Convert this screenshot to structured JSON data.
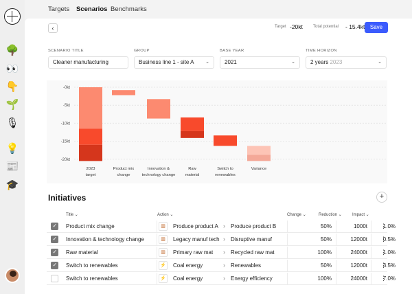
{
  "nav": {
    "tabs": [
      "Targets",
      "Scenarios",
      "Benchmarks"
    ],
    "active_tab": "Scenarios"
  },
  "header": {
    "target_label": "Target",
    "target_value": "-20kt",
    "potential_label": "Total potential",
    "potential_value": "- 15.4kt",
    "save_label": "Save",
    "back_icon": "chevron-left-icon"
  },
  "form": {
    "title_label": "SCENARIO TITLE",
    "title_value": "Cleaner manufacturing",
    "group_label": "GROUP",
    "group_value": "Business line 1 - site A",
    "base_year_label": "BASE YEAR",
    "base_year_value": "2021",
    "horizon_label": "TIME HORIZON",
    "horizon_value": "2 years",
    "horizon_hint": "2023"
  },
  "chart_data": {
    "type": "bar",
    "subtype": "waterfall",
    "y_tick_labels": [
      "-0kt",
      "-5kt",
      "-10kt",
      "-15kt",
      "-20kt"
    ],
    "ylim": [
      0,
      -21
    ],
    "categories": [
      "2023 target",
      "Product mix change",
      "Innovation & technology change",
      "Raw material",
      "Switch to renewables",
      "Variance"
    ],
    "x_labels": [
      [
        "2023",
        "target"
      ],
      [
        "Product mix",
        "change"
      ],
      [
        "Innovation &",
        "technology change"
      ],
      [
        "Raw",
        "material"
      ],
      [
        "Switch to",
        "renewables"
      ],
      [
        "Variance"
      ]
    ],
    "bars": [
      {
        "start": 0,
        "end": -20.5,
        "segments": [
          {
            "from": 0,
            "to": -11.5,
            "color": "#fc8a70"
          },
          {
            "from": -11.5,
            "to": -16,
            "color": "#f84a2c"
          },
          {
            "from": -16,
            "to": -20.5,
            "color": "#d5361c"
          }
        ]
      },
      {
        "start": -0.8,
        "end": -2.2,
        "segments": [
          {
            "from": -0.8,
            "to": -2.2,
            "color": "#fc8a70"
          }
        ]
      },
      {
        "start": -3.3,
        "end": -8.7,
        "segments": [
          {
            "from": -3.3,
            "to": -8.7,
            "color": "#fc8a70"
          }
        ]
      },
      {
        "start": -8.4,
        "end": -14.1,
        "segments": [
          {
            "from": -8.4,
            "to": -12.2,
            "color": "#f84a2c"
          },
          {
            "from": -12.2,
            "to": -14.1,
            "color": "#d5361c"
          }
        ]
      },
      {
        "start": -13.4,
        "end": -16.3,
        "segments": [
          {
            "from": -13.4,
            "to": -16.3,
            "color": "#f84a2c"
          }
        ]
      },
      {
        "start": -16.3,
        "end": -20.5,
        "segments": [
          {
            "from": -16.3,
            "to": -18.8,
            "color": "#fdc4b6"
          },
          {
            "from": -18.8,
            "to": -20.5,
            "color": "#f4a898"
          }
        ]
      }
    ],
    "grid": true
  },
  "initiatives": {
    "title": "Initiatives",
    "add_icon": "plus-icon",
    "columns": {
      "title": "Title",
      "action": "Action",
      "change": "Change",
      "reduction": "Reduction",
      "impact": "Impact"
    },
    "rows": [
      {
        "checked": true,
        "title": "Product mix change",
        "icon": "factory-icon",
        "from": "Produce product A",
        "to": "Produce product B",
        "change": "50%",
        "reduction": "1000t",
        "impact": "1.0%"
      },
      {
        "checked": true,
        "title": "Innovation & technology change",
        "icon": "factory-icon",
        "from": "Legacy manuf tech",
        "to": "Disruptive manuf",
        "change": "50%",
        "reduction": "12000t",
        "impact": "0.5%"
      },
      {
        "checked": true,
        "title": "Raw material",
        "icon": "factory-icon",
        "from": "Primary raw mat",
        "to": "Recycled raw mat",
        "change": "100%",
        "reduction": "24000t",
        "impact": "1.0%"
      },
      {
        "checked": true,
        "title": "Switch to renewables",
        "icon": "bolt-icon",
        "from": "Coal energy",
        "to": "Renewables",
        "change": "50%",
        "reduction": "12000t",
        "impact": "3.5%"
      },
      {
        "checked": false,
        "title": "Switch to renewables",
        "icon": "bolt-icon",
        "from": "Coal energy",
        "to": "Energy efficiency",
        "change": "100%",
        "reduction": "24000t",
        "impact": "7.0%"
      }
    ]
  },
  "sidebar": {
    "icons": [
      "logo-globe-icon",
      "tree-icon",
      "eyes-icon",
      "hand-icon",
      "seedling-icon",
      "microphone-icon",
      "lightbulb-icon",
      "document-icon",
      "graduation-cap-icon"
    ],
    "avatar": "user-avatar"
  }
}
